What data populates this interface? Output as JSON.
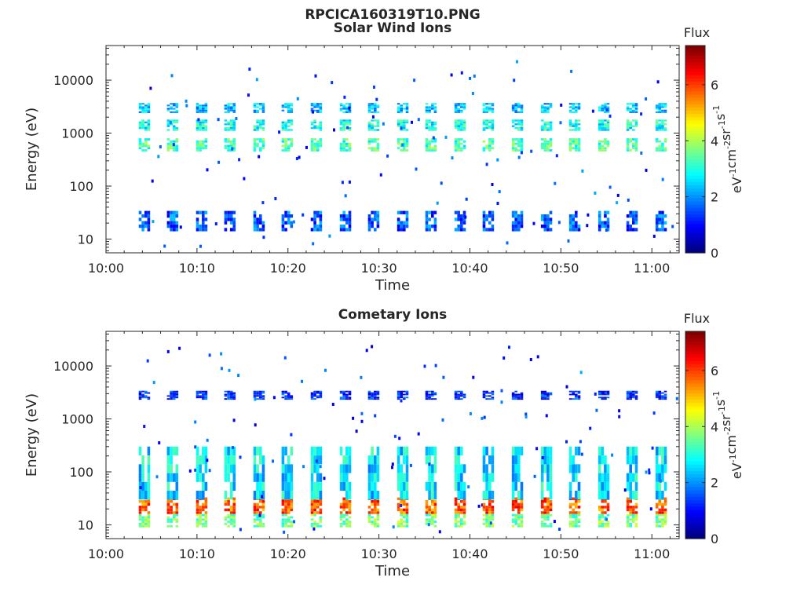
{
  "figure": {
    "title": "RPCICA160319T10.PNG"
  },
  "chart_data": [
    {
      "type": "heatmap",
      "title": "Solar Wind Ions",
      "xlabel": "Time",
      "ylabel": "Energy (eV)",
      "x_ticks": [
        "10:00",
        "10:10",
        "10:20",
        "10:30",
        "10:40",
        "10:50",
        "11:00"
      ],
      "x_range_minutes": [
        0,
        63
      ],
      "y_scale": "log",
      "y_ticks": [
        "10",
        "100",
        "1000",
        "10000"
      ],
      "y_range_eV": [
        5.5,
        45000
      ],
      "colorbar": {
        "label": "Flux",
        "units": "eV^-1 cm^-2 sr^-1 s^-1",
        "ticks": [
          "0",
          "2",
          "4",
          "6"
        ],
        "range": [
          0,
          7.4
        ],
        "colormap": "jet"
      },
      "sweep_start_minutes": [
        3.6,
        6.7,
        9.9,
        13.0,
        16.2,
        19.3,
        22.5,
        25.7,
        28.8,
        32.0,
        35.1,
        38.3,
        41.4,
        44.6,
        47.8,
        50.9,
        54.1,
        57.2,
        60.4
      ],
      "bands": [
        {
          "e_min": 2400,
          "e_max": 3700,
          "flux": 2.3
        },
        {
          "e_min": 1100,
          "e_max": 1800,
          "flux": 2.9
        },
        {
          "e_min": 450,
          "e_max": 800,
          "flux": 3.3
        },
        {
          "e_min": 14,
          "e_max": 34,
          "flux": 1.6
        }
      ]
    },
    {
      "type": "heatmap",
      "title": "Cometary Ions",
      "xlabel": "Time",
      "ylabel": "Energy (eV)",
      "x_ticks": [
        "10:00",
        "10:10",
        "10:20",
        "10:30",
        "10:40",
        "10:50",
        "11:00"
      ],
      "x_range_minutes": [
        0,
        63
      ],
      "y_scale": "log",
      "y_ticks": [
        "10",
        "100",
        "1000",
        "10000"
      ],
      "y_range_eV": [
        5.5,
        45000
      ],
      "colorbar": {
        "label": "Flux",
        "units": "eV^-1 cm^-2 sr^-1 s^-1",
        "ticks": [
          "0",
          "2",
          "4",
          "6"
        ],
        "range": [
          0,
          7.4
        ],
        "colormap": "jet"
      },
      "sweep_start_minutes": [
        3.6,
        6.7,
        9.9,
        13.0,
        16.2,
        19.3,
        22.5,
        25.7,
        28.8,
        32.0,
        35.1,
        38.3,
        41.4,
        44.6,
        47.8,
        50.9,
        54.1,
        57.2,
        60.4
      ],
      "bands": [
        {
          "e_min": 2300,
          "e_max": 3400,
          "flux": 1.2
        },
        {
          "e_min": 16,
          "e_max": 33,
          "flux": 5.8
        },
        {
          "e_min": 9,
          "e_max": 16,
          "flux": 3.6
        },
        {
          "e_min": 30,
          "e_max": 300,
          "flux": 2.6
        }
      ]
    }
  ]
}
